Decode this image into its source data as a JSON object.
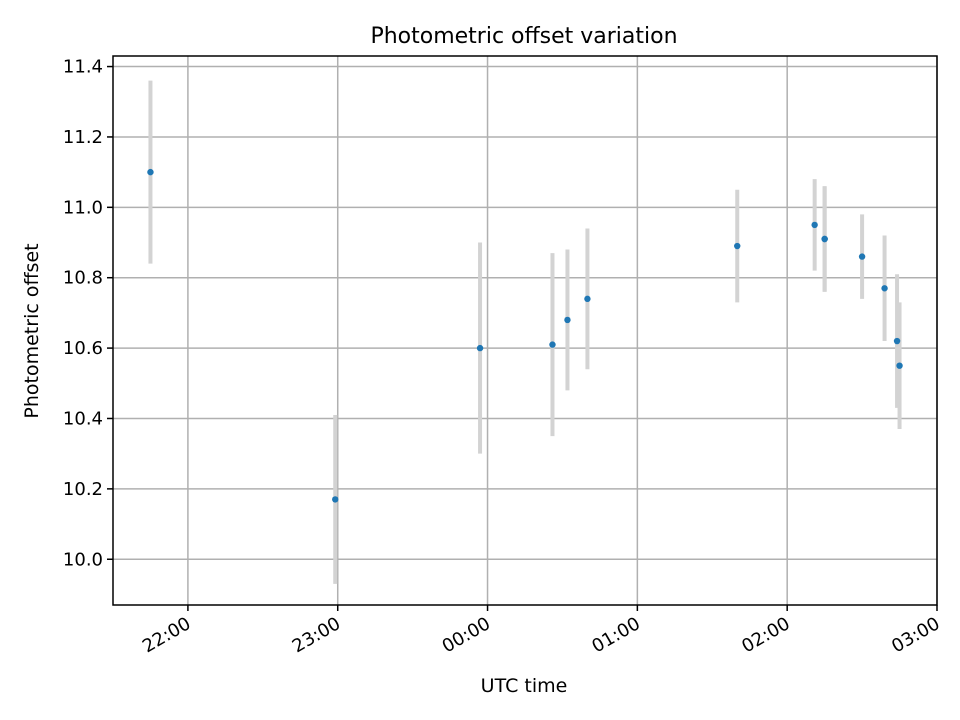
{
  "chart_data": {
    "type": "scatter",
    "title": "Photometric offset variation",
    "xlabel": "UTC time",
    "ylabel": "Photometric offset",
    "x_axis": {
      "kind": "time",
      "range": [
        "21:30",
        "03:00"
      ],
      "ticks": [
        "22:00",
        "23:00",
        "00:00",
        "01:00",
        "02:00",
        "03:00"
      ]
    },
    "y_axis": {
      "range": [
        9.87,
        11.43
      ],
      "ticks": [
        "10.0",
        "10.2",
        "10.4",
        "10.6",
        "10.8",
        "11.0",
        "11.2",
        "11.4"
      ]
    },
    "grid": true,
    "series": [
      {
        "marker_color": "#1f77b4",
        "errorbar_color": "#d3d3d3",
        "points": [
          {
            "t": "21:45",
            "y": 11.1,
            "err": 0.26
          },
          {
            "t": "22:59",
            "y": 10.17,
            "err": 0.24
          },
          {
            "t": "23:57",
            "y": 10.6,
            "err": 0.3
          },
          {
            "t": "00:26",
            "y": 10.61,
            "err": 0.26
          },
          {
            "t": "00:32",
            "y": 10.68,
            "err": 0.2
          },
          {
            "t": "00:40",
            "y": 10.74,
            "err": 0.2
          },
          {
            "t": "01:40",
            "y": 10.89,
            "err": 0.16
          },
          {
            "t": "02:11",
            "y": 10.95,
            "err": 0.13
          },
          {
            "t": "02:15",
            "y": 10.91,
            "err": 0.15
          },
          {
            "t": "02:15",
            "y": 10.91,
            "err": 0.15
          },
          {
            "t": "02:30",
            "y": 10.86,
            "err": 0.12
          },
          {
            "t": "02:39",
            "y": 10.77,
            "err": 0.15
          },
          {
            "t": "02:44",
            "y": 10.62,
            "err": 0.19
          },
          {
            "t": "02:45",
            "y": 10.55,
            "err": 0.18
          }
        ]
      }
    ]
  }
}
